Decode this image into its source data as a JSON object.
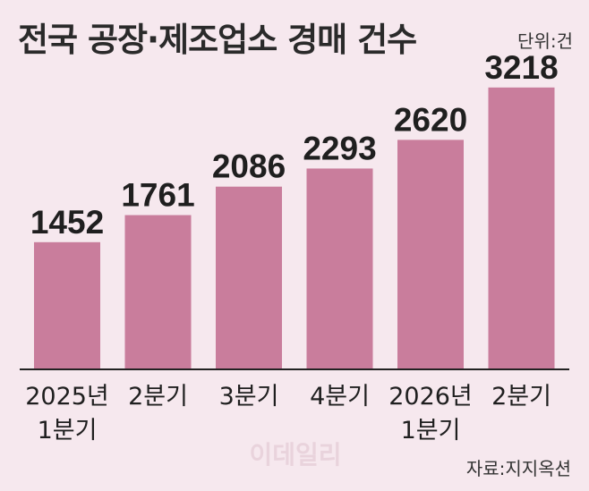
{
  "title": "전국 공장·제조업소 경매 건수",
  "unit_label": "단위:건",
  "source": "자료:지지옥션",
  "watermark": "이데일리",
  "chart_data": {
    "type": "bar",
    "title": "전국 공장·제조업소 경매 건수",
    "categories": [
      [
        "2025년",
        "1분기"
      ],
      [
        "2분기"
      ],
      [
        "3분기"
      ],
      [
        "4분기"
      ],
      [
        "2026년",
        "1분기"
      ],
      [
        "2분기"
      ]
    ],
    "values": [
      1452,
      1761,
      2086,
      2293,
      2620,
      3218
    ],
    "ylim": [
      0,
      3400
    ],
    "grid": false,
    "bar_color": "#c97d9c",
    "xlabel": "",
    "ylabel": ""
  }
}
